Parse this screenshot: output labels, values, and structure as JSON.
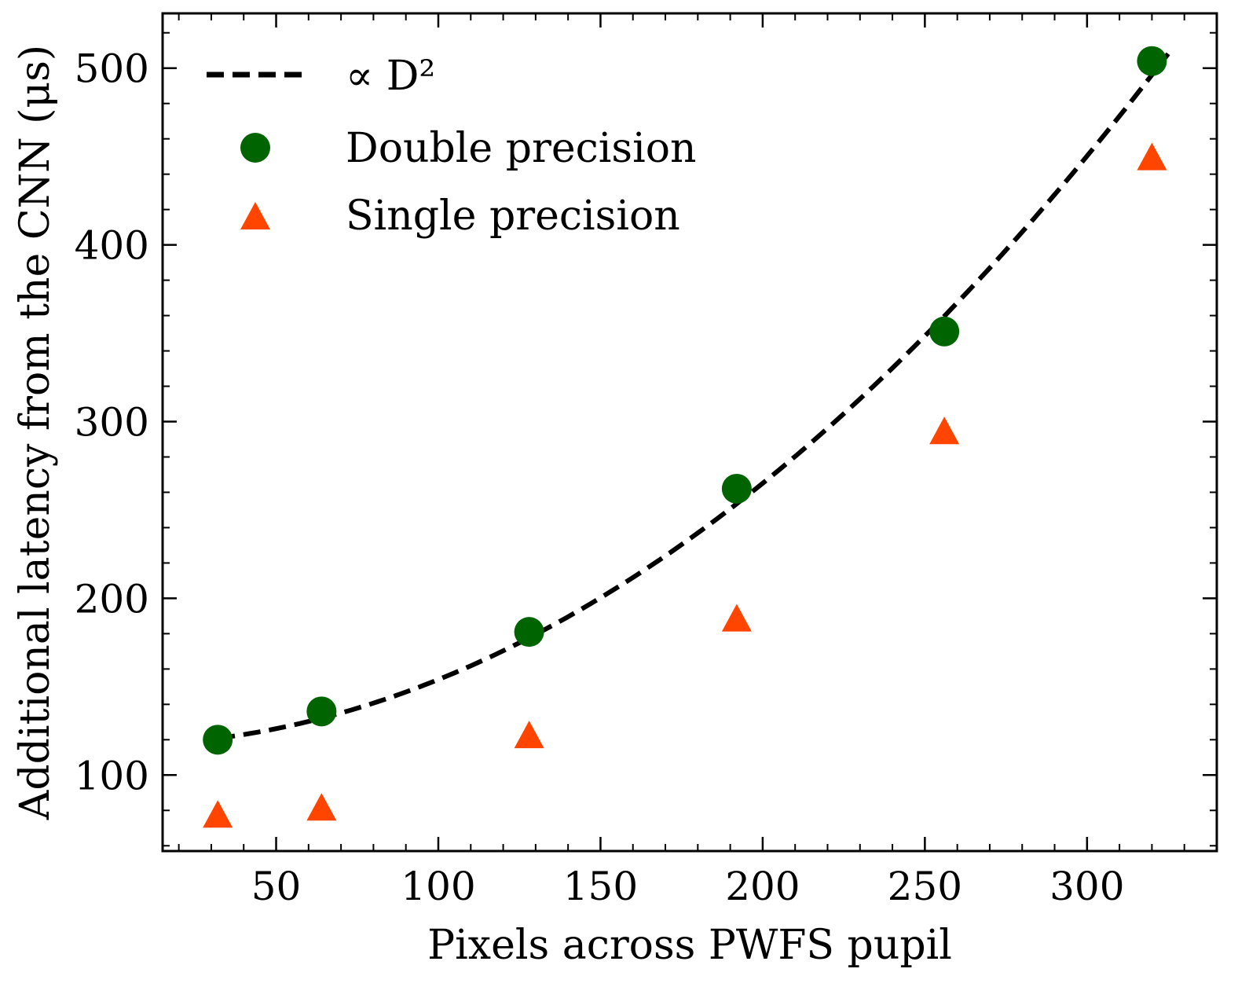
{
  "chart_data": {
    "type": "scatter",
    "xlabel": "Pixels across PWFS pupil",
    "ylabel": "Additional latency from the CNN (μs)",
    "xlim": [
      15,
      340
    ],
    "ylim": [
      57,
      531
    ],
    "x_ticks": [
      50,
      100,
      150,
      200,
      250,
      300
    ],
    "y_ticks": [
      100,
      200,
      300,
      400,
      500
    ],
    "x_tick_labels": [
      "50",
      "100",
      "150",
      "200",
      "250",
      "300"
    ],
    "y_tick_labels": [
      "100",
      "200",
      "300",
      "400",
      "500"
    ],
    "grid": false,
    "legend_position": "top-left",
    "series": [
      {
        "name": "∝ D²",
        "kind": "dashed-line",
        "color": "#000000",
        "fit": {
          "a": 117.0,
          "b": 0.003703,
          "x_from": 32,
          "x_to": 325
        }
      },
      {
        "name": "Double precision",
        "kind": "circle",
        "color": "#006400",
        "x": [
          32,
          64,
          128,
          192,
          256,
          320
        ],
        "y": [
          120,
          136,
          181,
          262,
          351,
          504
        ]
      },
      {
        "name": "Single precision",
        "kind": "triangle",
        "color": "#ff4500",
        "x": [
          32,
          64,
          128,
          192,
          256,
          320
        ],
        "y": [
          76,
          80,
          121,
          187,
          293,
          448
        ]
      }
    ]
  }
}
